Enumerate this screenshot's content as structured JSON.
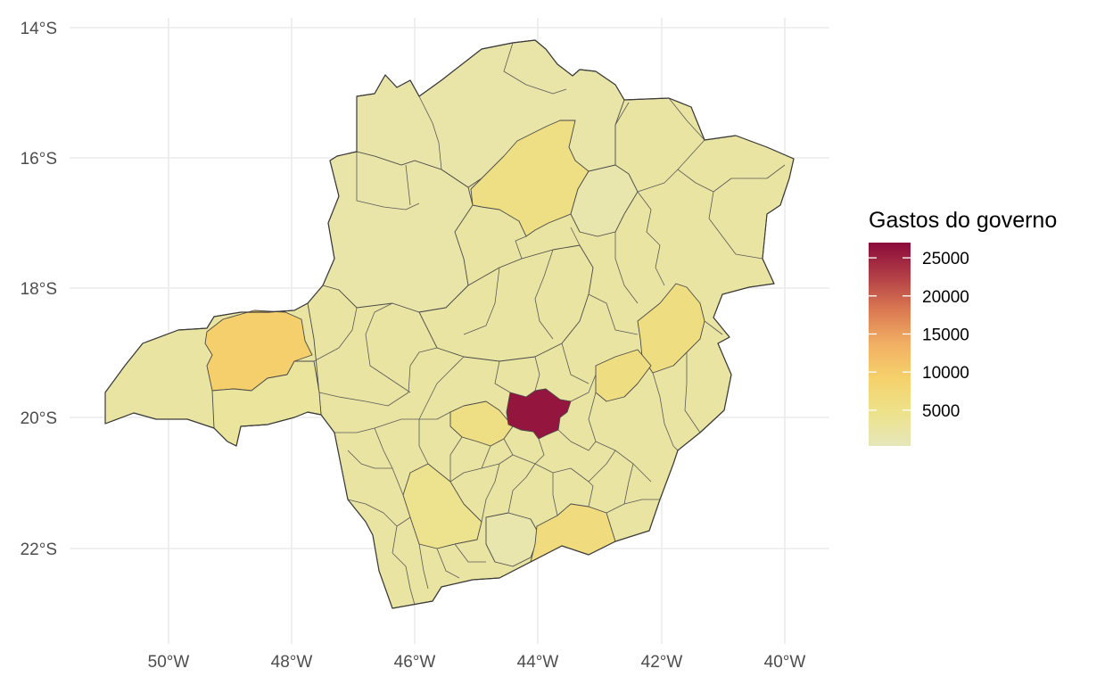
{
  "map": {
    "x_ticks": [
      "50°W",
      "48°W",
      "46°W",
      "44°W",
      "42°W",
      "40°W"
    ],
    "y_ticks": [
      "14°S",
      "16°S",
      "18°S",
      "20°S",
      "22°S"
    ],
    "regions": [
      {
        "id": "pouso-alegre-area",
        "value": 2500
      },
      {
        "id": "triangulo",
        "value": 2500
      },
      {
        "id": "uberlandia",
        "value": 9500
      },
      {
        "id": "uberaba",
        "value": 3000
      },
      {
        "id": "noroeste",
        "value": 2000
      },
      {
        "id": "norte",
        "value": 2000
      },
      {
        "id": "montes-claros",
        "value": 5500
      },
      {
        "id": "jequitinhonha",
        "value": 1500
      },
      {
        "id": "central",
        "value": 2500
      },
      {
        "id": "vale-do-aco",
        "value": 6000
      },
      {
        "id": "belo-horizonte",
        "value": 26000
      },
      {
        "id": "betim-contagem",
        "value": 5500
      },
      {
        "id": "campo-das-vertentes",
        "value": 1500
      },
      {
        "id": "juiz-de-fora",
        "value": 6500
      },
      {
        "id": "sul",
        "value": 4500
      }
    ]
  },
  "legend": {
    "title": "Gastos do governo",
    "labels": [
      "25000",
      "20000",
      "15000",
      "10000",
      "5000"
    ],
    "ticks": [
      25000,
      20000,
      15000,
      10000,
      5000
    ],
    "min": 300,
    "max": 27000,
    "colors": [
      "#e6e6ba",
      "#ede28a",
      "#f5d16b",
      "#f2b064",
      "#db7a52",
      "#b23f46",
      "#8b0a3c"
    ]
  }
}
